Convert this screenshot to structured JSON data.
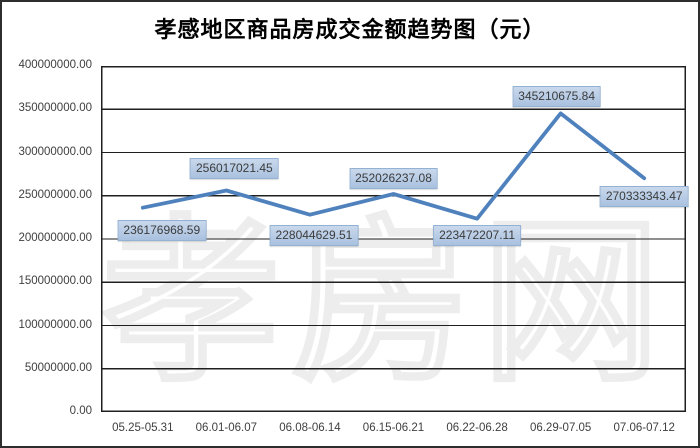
{
  "watermark_text": "孝房网",
  "chart_data": {
    "type": "line",
    "title": "孝感地区商品房成交金额趋势图（元）",
    "categories": [
      "05.25-05.31",
      "06.01-06.07",
      "06.08-06.14",
      "06.15-06.21",
      "06.22-06.28",
      "06.29-07.05",
      "07.06-07.12"
    ],
    "series": [
      {
        "name": "商品房成交金额",
        "values": [
          236176968.59,
          256017021.45,
          228044629.51,
          252026237.08,
          223472207.11,
          345210675.84,
          270333343.47
        ]
      }
    ],
    "data_labels": [
      "236176968.59",
      "256017021.45",
      "228044629.51",
      "252026237.08",
      "223472207.11",
      "345210675.84",
      "270333343.47"
    ],
    "y_tick_labels": [
      "0.00",
      "50000000.00",
      "100000000.00",
      "150000000.00",
      "200000000.00",
      "250000000.00",
      "300000000.00",
      "350000000.00",
      "400000000.00"
    ],
    "ylim": [
      0,
      400000000
    ],
    "y_tick_step": 50000000,
    "xlabel": "",
    "ylabel": "",
    "grid": "horizontal",
    "legend": "none",
    "colors": {
      "line": "#4f81bd",
      "label_bg": "#b8cce4",
      "label_border": "#93b1d3",
      "grid_line": "#1f1f1f",
      "axis_text": "#3f3f3f",
      "title_text": "#000000"
    }
  }
}
